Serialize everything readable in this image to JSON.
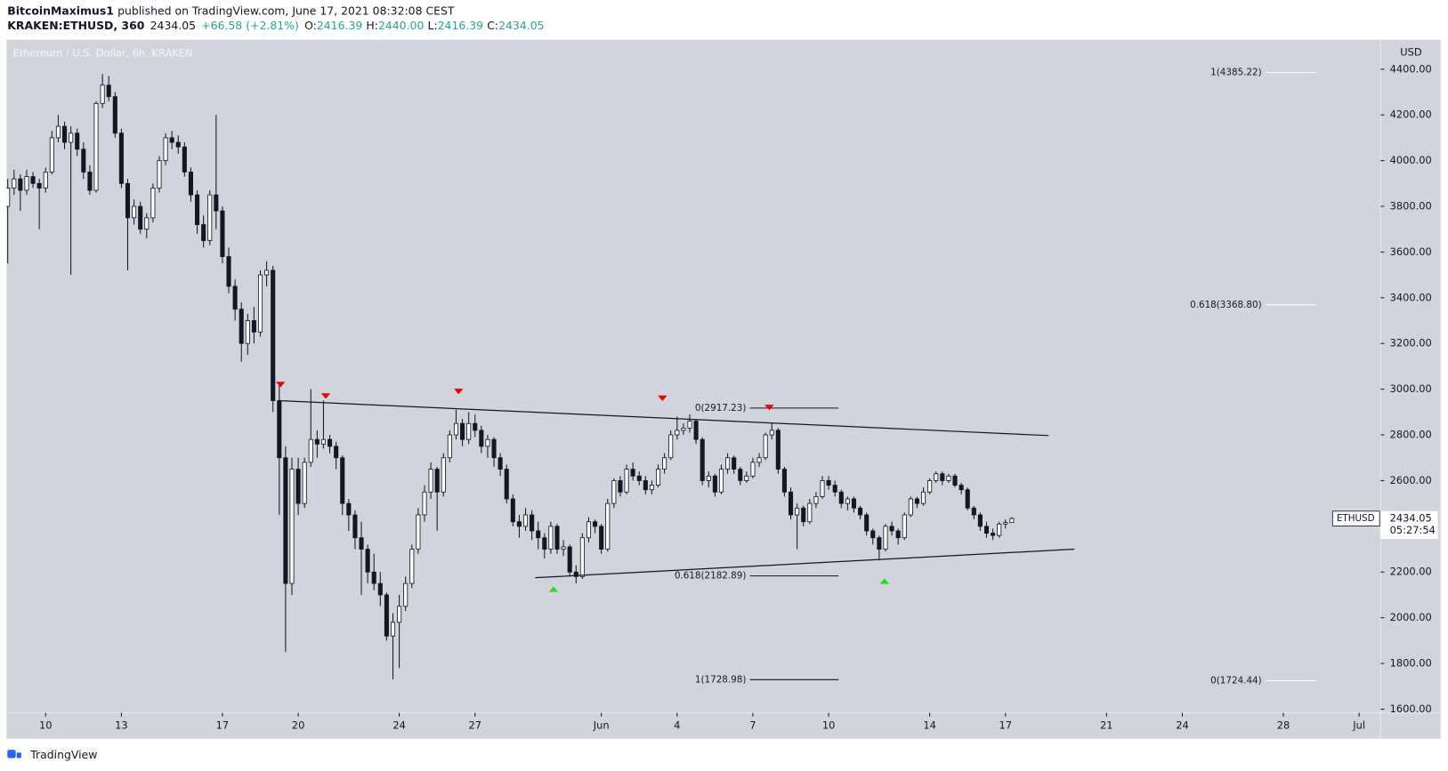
{
  "header": {
    "author": "BitcoinMaximus1",
    "published": "published on TradingView.com, June 17, 2021 08:32:08 CEST",
    "symbol": "KRAKEN:ETHUSD, 360",
    "last": "2434.05",
    "change": "+66.58 (+2.81%)",
    "ohlc": [
      {
        "k": "O:",
        "v": "2416.39"
      },
      {
        "k": "H:",
        "v": "2440.00"
      },
      {
        "k": "L:",
        "v": "2416.39"
      },
      {
        "k": "C:",
        "v": "2434.05"
      }
    ]
  },
  "footer": {
    "brand": "TradingView"
  },
  "chart_data": {
    "type": "candlestick",
    "title": "Ethereum / U.S. Dollar, 6h, KRAKEN",
    "y_unit": "USD",
    "price_tag": {
      "symbol": "ETHUSD",
      "countdown": "05:27:54"
    },
    "up_color": "#ffffff",
    "down_color": "#131722",
    "xlim": [
      8.45,
      62.85
    ],
    "ylim": [
      1584,
      4529
    ],
    "xticks": [
      {
        "value": 10,
        "label": "10"
      },
      {
        "value": 13,
        "label": "13"
      },
      {
        "value": 17,
        "label": "17"
      },
      {
        "value": 20,
        "label": "20"
      },
      {
        "value": 24,
        "label": "24"
      },
      {
        "value": 27,
        "label": "27"
      },
      {
        "value": 32,
        "label": "Jun"
      },
      {
        "value": 35,
        "label": "4"
      },
      {
        "value": 38,
        "label": "7"
      },
      {
        "value": 41,
        "label": "10"
      },
      {
        "value": 45,
        "label": "14"
      },
      {
        "value": 48,
        "label": "17"
      },
      {
        "value": 52,
        "label": "21"
      },
      {
        "value": 55,
        "label": "24"
      },
      {
        "value": 59,
        "label": "28"
      },
      {
        "value": 62,
        "label": "Jul"
      }
    ],
    "yticks": [
      {
        "value": 1600,
        "label": "1600.00"
      },
      {
        "value": 1800,
        "label": "1800.00"
      },
      {
        "value": 2000,
        "label": "2000.00"
      },
      {
        "value": 2200,
        "label": "2200.00"
      },
      {
        "value": 2400,
        "label": "2400.00"
      },
      {
        "value": 2600,
        "label": "2600.00"
      },
      {
        "value": 2800,
        "label": "2800.00"
      },
      {
        "value": 3000,
        "label": "3000.00"
      },
      {
        "value": 3200,
        "label": "3200.00"
      },
      {
        "value": 3400,
        "label": "3400.00"
      },
      {
        "value": 3600,
        "label": "3600.00"
      },
      {
        "value": 3800,
        "label": "3800.00"
      },
      {
        "value": 4000,
        "label": "4000.00"
      },
      {
        "value": 4200,
        "label": "4200.00"
      },
      {
        "value": 4400,
        "label": "4400.00"
      }
    ],
    "x": [
      8.5,
      8.75,
      9,
      9.25,
      9.5,
      9.75,
      10,
      10.25,
      10.5,
      10.75,
      11,
      11.25,
      11.5,
      11.75,
      12,
      12.25,
      12.5,
      12.75,
      13,
      13.25,
      13.5,
      13.75,
      14,
      14.25,
      14.5,
      14.75,
      15,
      15.25,
      15.5,
      15.75,
      16,
      16.25,
      16.5,
      16.75,
      17,
      17.25,
      17.5,
      17.75,
      18,
      18.25,
      18.5,
      18.75,
      19,
      19.25,
      19.5,
      19.75,
      20,
      20.25,
      20.5,
      20.75,
      21,
      21.25,
      21.5,
      21.75,
      22,
      22.25,
      22.5,
      22.75,
      23,
      23.25,
      23.5,
      23.75,
      24,
      24.25,
      24.5,
      24.75,
      25,
      25.25,
      25.5,
      25.75,
      26,
      26.25,
      26.5,
      26.75,
      27,
      27.25,
      27.5,
      27.75,
      28,
      28.25,
      28.5,
      28.75,
      29,
      29.25,
      29.5,
      29.75,
      30,
      30.25,
      30.5,
      30.75,
      31,
      31.25,
      31.5,
      31.75,
      32,
      32.25,
      32.5,
      32.75,
      33,
      33.25,
      33.5,
      33.75,
      34,
      34.25,
      34.5,
      34.75,
      35,
      35.25,
      35.5,
      35.75,
      36,
      36.25,
      36.5,
      36.75,
      37,
      37.25,
      37.5,
      37.75,
      38,
      38.25,
      38.5,
      38.75,
      39,
      39.25,
      39.5,
      39.75,
      40,
      40.25,
      40.5,
      40.75,
      41,
      41.25,
      41.5,
      41.75,
      42,
      42.25,
      42.5,
      42.75,
      43,
      43.25,
      43.5,
      43.75,
      44,
      44.25,
      44.5,
      44.75,
      45,
      45.25,
      45.5,
      45.75,
      46,
      46.25,
      46.5,
      46.75,
      47,
      47.25,
      47.5,
      47.75,
      48,
      48.25
    ],
    "candles": [
      [
        3800,
        3920,
        3550,
        3880
      ],
      [
        3880,
        3960,
        3850,
        3920
      ],
      [
        3920,
        3940,
        3780,
        3870
      ],
      [
        3870,
        3960,
        3850,
        3930
      ],
      [
        3930,
        3950,
        3880,
        3900
      ],
      [
        3900,
        3920,
        3700,
        3880
      ],
      [
        3880,
        3970,
        3860,
        3950
      ],
      [
        3950,
        4130,
        3940,
        4100
      ],
      [
        4100,
        4200,
        4080,
        4150
      ],
      [
        4150,
        4170,
        4050,
        4080
      ],
      [
        4080,
        4150,
        3500,
        4120
      ],
      [
        4120,
        4140,
        4020,
        4050
      ],
      [
        4050,
        4080,
        3920,
        3950
      ],
      [
        3950,
        3980,
        3850,
        3870
      ],
      [
        3870,
        4260,
        3860,
        4250
      ],
      [
        4250,
        4380,
        4230,
        4330
      ],
      [
        4330,
        4370,
        4260,
        4280
      ],
      [
        4280,
        4300,
        4100,
        4120
      ],
      [
        4120,
        4140,
        3880,
        3900
      ],
      [
        3900,
        3920,
        3520,
        3750
      ],
      [
        3750,
        3830,
        3720,
        3800
      ],
      [
        3800,
        3820,
        3680,
        3700
      ],
      [
        3700,
        3770,
        3660,
        3750
      ],
      [
        3750,
        3900,
        3730,
        3880
      ],
      [
        3880,
        4020,
        3860,
        4000
      ],
      [
        4000,
        4120,
        3980,
        4100
      ],
      [
        4100,
        4130,
        4050,
        4080
      ],
      [
        4080,
        4110,
        4030,
        4060
      ],
      [
        4060,
        4080,
        3930,
        3950
      ],
      [
        3950,
        3970,
        3820,
        3850
      ],
      [
        3850,
        3870,
        3680,
        3720
      ],
      [
        3720,
        3760,
        3620,
        3650
      ],
      [
        3650,
        3870,
        3630,
        3850
      ],
      [
        3850,
        4200,
        3700,
        3780
      ],
      [
        3780,
        3800,
        3550,
        3580
      ],
      [
        3580,
        3620,
        3420,
        3450
      ],
      [
        3450,
        3480,
        3300,
        3350
      ],
      [
        3350,
        3380,
        3120,
        3200
      ],
      [
        3200,
        3330,
        3150,
        3300
      ],
      [
        3300,
        3360,
        3200,
        3250
      ],
      [
        3250,
        3520,
        3230,
        3500
      ],
      [
        3500,
        3560,
        3450,
        3520
      ],
      [
        3520,
        3540,
        2900,
        2950
      ],
      [
        2950,
        3030,
        2450,
        2700
      ],
      [
        2700,
        2750,
        1850,
        2150
      ],
      [
        2150,
        2700,
        2100,
        2650
      ],
      [
        2650,
        2700,
        2450,
        2500
      ],
      [
        2500,
        2700,
        2480,
        2680
      ],
      [
        2680,
        3000,
        2660,
        2780
      ],
      [
        2780,
        2820,
        2700,
        2760
      ],
      [
        2760,
        2950,
        2740,
        2780
      ],
      [
        2780,
        2800,
        2720,
        2750
      ],
      [
        2750,
        2770,
        2650,
        2700
      ],
      [
        2700,
        2710,
        2450,
        2500
      ],
      [
        2500,
        2520,
        2380,
        2450
      ],
      [
        2450,
        2470,
        2300,
        2350
      ],
      [
        2350,
        2420,
        2100,
        2300
      ],
      [
        2300,
        2320,
        2150,
        2200
      ],
      [
        2200,
        2280,
        2120,
        2150
      ],
      [
        2150,
        2200,
        2050,
        2100
      ],
      [
        2100,
        2110,
        1900,
        1920
      ],
      [
        1920,
        2020,
        1730,
        1980
      ],
      [
        1980,
        2100,
        1780,
        2050
      ],
      [
        2050,
        2180,
        2030,
        2150
      ],
      [
        2150,
        2320,
        2130,
        2300
      ],
      [
        2300,
        2480,
        2280,
        2450
      ],
      [
        2450,
        2580,
        2420,
        2550
      ],
      [
        2550,
        2680,
        2520,
        2650
      ],
      [
        2650,
        2660,
        2380,
        2550
      ],
      [
        2550,
        2720,
        2530,
        2700
      ],
      [
        2700,
        2820,
        2680,
        2800
      ],
      [
        2800,
        2910,
        2780,
        2850
      ],
      [
        2850,
        2870,
        2750,
        2780
      ],
      [
        2780,
        2900,
        2760,
        2850
      ],
      [
        2850,
        2890,
        2790,
        2820
      ],
      [
        2820,
        2840,
        2720,
        2750
      ],
      [
        2750,
        2800,
        2700,
        2780
      ],
      [
        2780,
        2790,
        2660,
        2700
      ],
      [
        2700,
        2720,
        2620,
        2650
      ],
      [
        2650,
        2670,
        2500,
        2520
      ],
      [
        2520,
        2540,
        2400,
        2420
      ],
      [
        2420,
        2450,
        2350,
        2400
      ],
      [
        2400,
        2480,
        2380,
        2450
      ],
      [
        2450,
        2470,
        2340,
        2380
      ],
      [
        2380,
        2420,
        2300,
        2350
      ],
      [
        2350,
        2370,
        2260,
        2300
      ],
      [
        2300,
        2420,
        2280,
        2400
      ],
      [
        2400,
        2410,
        2280,
        2300
      ],
      [
        2300,
        2340,
        2270,
        2310
      ],
      [
        2310,
        2320,
        2180,
        2200
      ],
      [
        2200,
        2230,
        2150,
        2180
      ],
      [
        2180,
        2370,
        2170,
        2350
      ],
      [
        2350,
        2440,
        2330,
        2420
      ],
      [
        2420,
        2430,
        2370,
        2400
      ],
      [
        2400,
        2410,
        2280,
        2300
      ],
      [
        2300,
        2520,
        2290,
        2500
      ],
      [
        2500,
        2610,
        2480,
        2600
      ],
      [
        2600,
        2620,
        2530,
        2550
      ],
      [
        2550,
        2670,
        2540,
        2650
      ],
      [
        2650,
        2680,
        2600,
        2620
      ],
      [
        2620,
        2640,
        2580,
        2600
      ],
      [
        2600,
        2620,
        2540,
        2560
      ],
      [
        2560,
        2600,
        2540,
        2580
      ],
      [
        2580,
        2670,
        2570,
        2650
      ],
      [
        2650,
        2720,
        2630,
        2700
      ],
      [
        2700,
        2820,
        2690,
        2800
      ],
      [
        2800,
        2880,
        2780,
        2820
      ],
      [
        2820,
        2850,
        2800,
        2830
      ],
      [
        2830,
        2890,
        2810,
        2860
      ],
      [
        2860,
        2870,
        2760,
        2780
      ],
      [
        2780,
        2790,
        2580,
        2600
      ],
      [
        2600,
        2640,
        2570,
        2620
      ],
      [
        2620,
        2630,
        2530,
        2550
      ],
      [
        2550,
        2670,
        2540,
        2650
      ],
      [
        2650,
        2720,
        2630,
        2700
      ],
      [
        2700,
        2710,
        2630,
        2650
      ],
      [
        2650,
        2660,
        2580,
        2600
      ],
      [
        2600,
        2640,
        2590,
        2620
      ],
      [
        2620,
        2700,
        2610,
        2680
      ],
      [
        2680,
        2720,
        2660,
        2700
      ],
      [
        2700,
        2810,
        2690,
        2800
      ],
      [
        2800,
        2850,
        2780,
        2820
      ],
      [
        2820,
        2830,
        2630,
        2650
      ],
      [
        2650,
        2660,
        2530,
        2550
      ],
      [
        2550,
        2570,
        2430,
        2450
      ],
      [
        2450,
        2500,
        2300,
        2480
      ],
      [
        2480,
        2490,
        2400,
        2420
      ],
      [
        2420,
        2520,
        2410,
        2500
      ],
      [
        2500,
        2550,
        2480,
        2530
      ],
      [
        2530,
        2620,
        2520,
        2600
      ],
      [
        2600,
        2620,
        2560,
        2580
      ],
      [
        2580,
        2600,
        2530,
        2550
      ],
      [
        2550,
        2560,
        2480,
        2500
      ],
      [
        2500,
        2530,
        2470,
        2520
      ],
      [
        2520,
        2530,
        2460,
        2480
      ],
      [
        2480,
        2490,
        2430,
        2450
      ],
      [
        2450,
        2460,
        2360,
        2380
      ],
      [
        2380,
        2390,
        2320,
        2350
      ],
      [
        2350,
        2360,
        2250,
        2300
      ],
      [
        2300,
        2410,
        2290,
        2400
      ],
      [
        2400,
        2420,
        2360,
        2380
      ],
      [
        2380,
        2390,
        2320,
        2350
      ],
      [
        2350,
        2460,
        2340,
        2450
      ],
      [
        2450,
        2530,
        2440,
        2520
      ],
      [
        2520,
        2530,
        2480,
        2500
      ],
      [
        2500,
        2570,
        2490,
        2550
      ],
      [
        2550,
        2610,
        2540,
        2600
      ],
      [
        2600,
        2640,
        2590,
        2630
      ],
      [
        2630,
        2640,
        2580,
        2600
      ],
      [
        2600,
        2630,
        2590,
        2620
      ],
      [
        2620,
        2630,
        2570,
        2580
      ],
      [
        2580,
        2590,
        2540,
        2560
      ],
      [
        2560,
        2570,
        2470,
        2480
      ],
      [
        2480,
        2490,
        2430,
        2450
      ],
      [
        2450,
        2460,
        2380,
        2400
      ],
      [
        2400,
        2420,
        2350,
        2370
      ],
      [
        2370,
        2390,
        2340,
        2360
      ],
      [
        2360,
        2420,
        2350,
        2410
      ],
      [
        2410,
        2430,
        2390,
        2416.39
      ],
      [
        2416.39,
        2440,
        2416.39,
        2434.05
      ]
    ],
    "trendlines": [
      {
        "x": [
          19.23,
          49.71
        ],
        "y": [
          2950,
          2797
        ]
      },
      {
        "x": [
          29.38,
          50.73
        ],
        "y": [
          2175,
          2300
        ]
      }
    ],
    "markers": [
      {
        "x": 19.3,
        "y": 3020,
        "color": "#f00000",
        "direction": "down"
      },
      {
        "x": 21.09,
        "y": 2970,
        "color": "#f00000",
        "direction": "down"
      },
      {
        "x": 26.35,
        "y": 2990,
        "color": "#f00000",
        "direction": "down"
      },
      {
        "x": 34.42,
        "y": 2960,
        "color": "#f00000",
        "direction": "down"
      },
      {
        "x": 38.65,
        "y": 2920,
        "color": "#f00000",
        "direction": "down"
      },
      {
        "x": 30.11,
        "y": 2125,
        "color": "#22dd22",
        "direction": "up"
      },
      {
        "x": 43.21,
        "y": 2160,
        "color": "#22dd22",
        "direction": "up"
      }
    ],
    "fib_groups": [
      {
        "x": [
          37.88,
          41.39
        ],
        "color": "#131722",
        "levels": [
          {
            "value": 2917.23,
            "label": "0(2917.23)"
          },
          {
            "value": 2182.89,
            "label": "0.618(2182.89)"
          },
          {
            "value": 1728.98,
            "label": "1(1728.98)"
          }
        ]
      },
      {
        "x": [
          58.29,
          60.3
        ],
        "color": "#ffffff",
        "levels": [
          {
            "value": 4385.22,
            "label": "1(4385.22)"
          },
          {
            "value": 3368.8,
            "label": "0.618(3368.80)"
          },
          {
            "value": 1724.44,
            "label": "0(1724.44)"
          }
        ]
      }
    ]
  }
}
